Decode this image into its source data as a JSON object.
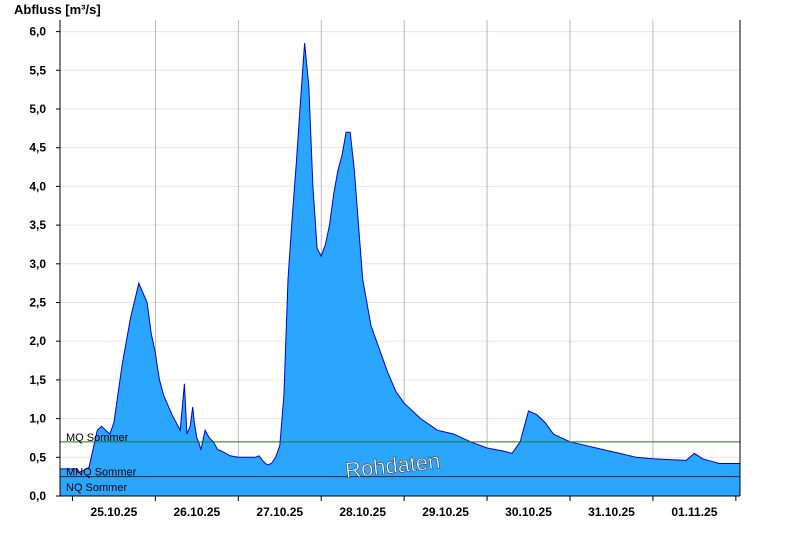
{
  "chart_data": {
    "type": "area",
    "ylabel": "Abfluss [m³/s]",
    "ylim": [
      0,
      6.15
    ],
    "yticks": [
      "0,0",
      "0,5",
      "1,0",
      "1,5",
      "2,0",
      "2,5",
      "3,0",
      "3,5",
      "4,0",
      "4,5",
      "5,0",
      "5,5",
      "6,0"
    ],
    "xlim": [
      -0.15,
      8.05
    ],
    "xtick_labels": [
      "25.10.25",
      "26.10.25",
      "27.10.25",
      "28.10.25",
      "29.10.25",
      "30.10.25",
      "31.10.25",
      "01.11.25"
    ],
    "grid": true,
    "colors": {
      "fill": "#2aa6ff",
      "line": "#0000cc",
      "mq_line": "#1a7a1a",
      "mnq_line": "#222222"
    },
    "reference_lines": [
      {
        "name": "MQ Sommer",
        "value": 0.7
      },
      {
        "name": "MNQ Sommer",
        "value": 0.25
      },
      {
        "name": "NQ Sommer",
        "value": 0.05
      }
    ],
    "annotation": "Rohdaten",
    "series": [
      {
        "x": [
          -0.15,
          0.05,
          0.07,
          0.2,
          0.3,
          0.35,
          0.45,
          0.5,
          0.6,
          0.7,
          0.8,
          0.9,
          0.95,
          1.0,
          1.02,
          1.05,
          1.1,
          1.2,
          1.3,
          1.35,
          1.38,
          1.42,
          1.45,
          1.47,
          1.5,
          1.52,
          1.55,
          1.6,
          1.65,
          1.7,
          1.75,
          1.8,
          1.9,
          2.0,
          2.1,
          2.2,
          2.25,
          2.3,
          2.35,
          2.4,
          2.45,
          2.5,
          2.55,
          2.6,
          2.65,
          2.7,
          2.75,
          2.8,
          2.85,
          2.9,
          2.95,
          3.0,
          3.05,
          3.1,
          3.15,
          3.2,
          3.25,
          3.3,
          3.35,
          3.4,
          3.45,
          3.5,
          3.6,
          3.7,
          3.8,
          3.9,
          4.0,
          4.2,
          4.4,
          4.6,
          4.8,
          5.0,
          5.2,
          5.3,
          5.4,
          5.5,
          5.6,
          5.7,
          5.8,
          6.0,
          6.2,
          6.4,
          6.6,
          6.8,
          7.0,
          7.2,
          7.4,
          7.5,
          7.6,
          7.7,
          7.8,
          8.05
        ],
        "values": [
          0.35,
          0.35,
          0.3,
          0.37,
          0.85,
          0.9,
          0.8,
          0.95,
          1.7,
          2.3,
          2.75,
          2.5,
          2.1,
          1.85,
          1.7,
          1.5,
          1.3,
          1.05,
          0.85,
          1.45,
          0.8,
          0.9,
          1.15,
          0.95,
          0.75,
          0.7,
          0.6,
          0.85,
          0.75,
          0.7,
          0.6,
          0.58,
          0.52,
          0.5,
          0.5,
          0.5,
          0.52,
          0.45,
          0.4,
          0.42,
          0.5,
          0.65,
          1.3,
          2.8,
          3.6,
          4.3,
          5.1,
          5.85,
          5.3,
          4.0,
          3.2,
          3.1,
          3.25,
          3.5,
          3.9,
          4.2,
          4.4,
          4.7,
          4.7,
          4.2,
          3.5,
          2.8,
          2.2,
          1.9,
          1.6,
          1.35,
          1.2,
          1.0,
          0.85,
          0.8,
          0.7,
          0.62,
          0.58,
          0.55,
          0.7,
          1.1,
          1.05,
          0.95,
          0.8,
          0.7,
          0.65,
          0.6,
          0.55,
          0.5,
          0.48,
          0.47,
          0.46,
          0.55,
          0.48,
          0.45,
          0.42,
          0.42
        ]
      }
    ]
  }
}
